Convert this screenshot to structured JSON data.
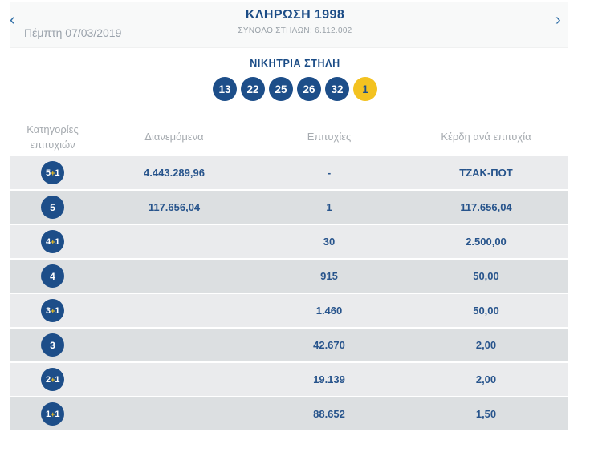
{
  "colors": {
    "navy": "#1d4e89",
    "gold": "#f3c220",
    "row_light": "#eaebed",
    "row_dark": "#dcdfe1"
  },
  "header": {
    "title": "ΚΛΗΡΩΣΗ 1998",
    "subtitle": "ΣΥΝΟΛΟ ΣΤΗΛΩΝ: 6.112.002",
    "date": "Πέμπτη 07/03/2019",
    "prev_icon": "‹",
    "next_icon": "›"
  },
  "winning": {
    "label": "ΝΙΚΗΤΡΙΑ ΣΤΗΛΗ",
    "numbers": [
      "13",
      "22",
      "25",
      "26",
      "32"
    ],
    "joker": "1"
  },
  "table": {
    "headers": [
      "Κατηγορίες επιτυχιών",
      "Διανεμόμενα",
      "Επιτυχίες",
      "Κέρδη ανά επιτυχία"
    ],
    "rows": [
      {
        "category": "5+1",
        "distributed": "4.443.289,96",
        "winners": "-",
        "prize": "ΤΖΑΚ-ΠΟΤ"
      },
      {
        "category": "5",
        "distributed": "117.656,04",
        "winners": "1",
        "prize": "117.656,04"
      },
      {
        "category": "4+1",
        "distributed": "",
        "winners": "30",
        "prize": "2.500,00"
      },
      {
        "category": "4",
        "distributed": "",
        "winners": "915",
        "prize": "50,00"
      },
      {
        "category": "3+1",
        "distributed": "",
        "winners": "1.460",
        "prize": "50,00"
      },
      {
        "category": "3",
        "distributed": "",
        "winners": "42.670",
        "prize": "2,00"
      },
      {
        "category": "2+1",
        "distributed": "",
        "winners": "19.139",
        "prize": "2,00"
      },
      {
        "category": "1+1",
        "distributed": "",
        "winners": "88.652",
        "prize": "1,50"
      }
    ]
  }
}
